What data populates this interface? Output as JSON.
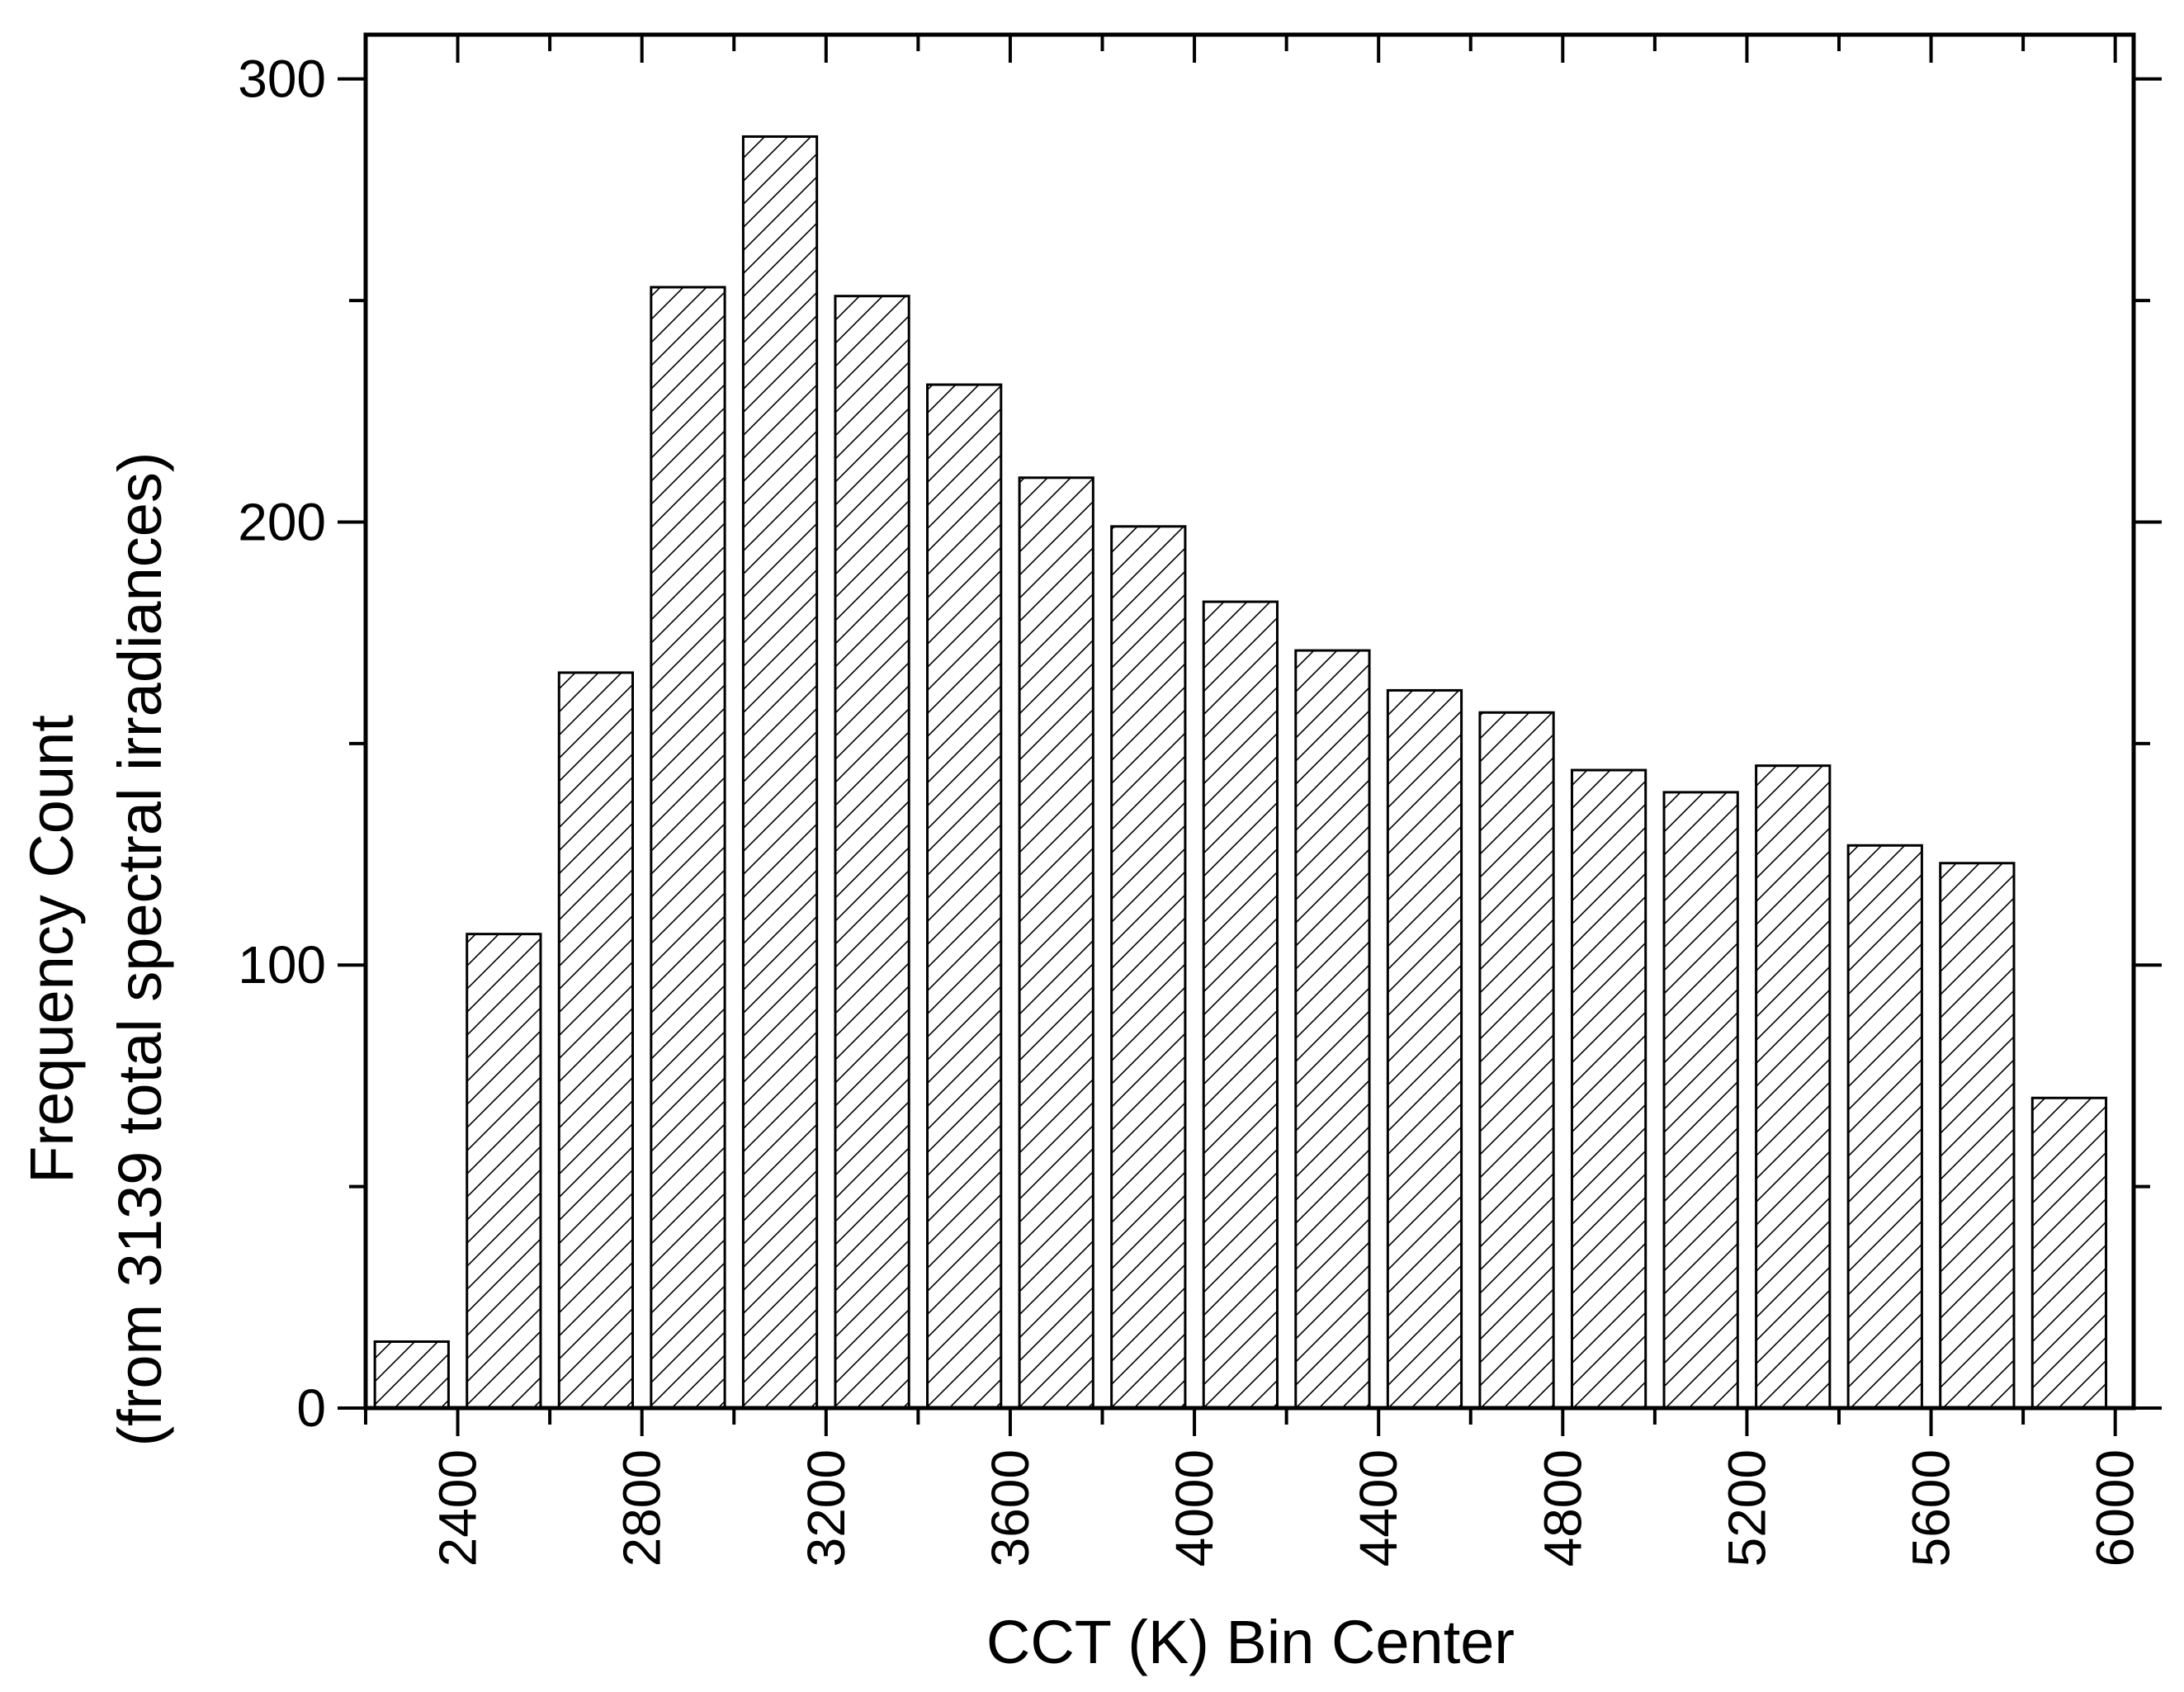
{
  "chart_data": {
    "type": "bar",
    "x": [
      2300,
      2500,
      2700,
      2900,
      3100,
      3300,
      3500,
      3700,
      3900,
      4100,
      4300,
      4500,
      4700,
      4900,
      5100,
      5300,
      5500,
      5700,
      5900
    ],
    "values": [
      15,
      107,
      166,
      253,
      287,
      251,
      231,
      210,
      199,
      182,
      171,
      162,
      157,
      144,
      139,
      145,
      127,
      123,
      70
    ],
    "xlabel": "CCT (K) Bin Center",
    "ylabel_line1": "Frequency Count",
    "ylabel_line2": "(from 3139 total spectral irradiances)",
    "xlim": [
      2200,
      6040
    ],
    "ylim": [
      0,
      310
    ],
    "x_ticks": [
      2400,
      2800,
      3200,
      3600,
      4000,
      4400,
      4800,
      5200,
      5600,
      6000
    ],
    "y_ticks": [
      0,
      100,
      200,
      300
    ],
    "bar_fill": "diagonal hatch",
    "grid": false,
    "legend": "none"
  }
}
